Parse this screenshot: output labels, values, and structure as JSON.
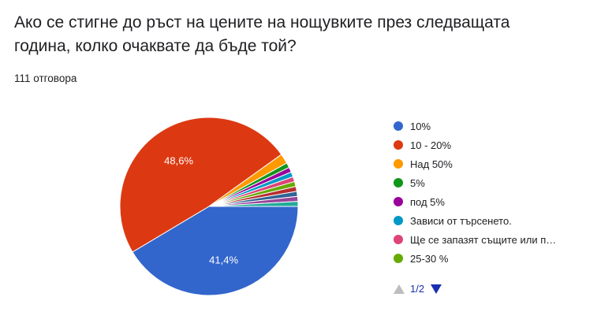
{
  "question": "Ако се стигне до ръст на цените на нощувките през следващата година, колко очаквате да бъде той?",
  "responses": "111 отговора",
  "chart_data": {
    "type": "pie",
    "slices": [
      {
        "label": "10%",
        "value": 41.4,
        "color": "#3366cc",
        "data_label": "41,4%"
      },
      {
        "label": "10 - 20%",
        "value": 48.6,
        "color": "#dc3912",
        "data_label": "48,6%"
      },
      {
        "label": "Над 50%",
        "value": 1.8,
        "color": "#ff9900",
        "data_label": ""
      },
      {
        "label": "5%",
        "value": 0.9,
        "color": "#109618",
        "data_label": ""
      },
      {
        "label": "под 5%",
        "value": 0.9,
        "color": "#990099",
        "data_label": ""
      },
      {
        "label": "Зависи от търсенето.",
        "value": 0.9,
        "color": "#0099c6",
        "data_label": ""
      },
      {
        "label": "Ще се запазят същите или п…",
        "value": 0.9,
        "color": "#dd4477",
        "data_label": ""
      },
      {
        "label": "25-30 %",
        "value": 0.9,
        "color": "#66aa00",
        "data_label": ""
      },
      {
        "label": "",
        "value": 0.9,
        "color": "#b82e2e",
        "data_label": ""
      },
      {
        "label": "",
        "value": 0.9,
        "color": "#316395",
        "data_label": ""
      },
      {
        "label": "",
        "value": 0.9,
        "color": "#994499",
        "data_label": ""
      },
      {
        "label": "",
        "value": 0.9,
        "color": "#22aa99",
        "data_label": ""
      }
    ]
  },
  "legend": {
    "items": [
      {
        "label": "10%",
        "color": "#3366cc"
      },
      {
        "label": "10 - 20%",
        "color": "#dc3912"
      },
      {
        "label": "Над 50%",
        "color": "#ff9900"
      },
      {
        "label": "5%",
        "color": "#109618"
      },
      {
        "label": "под 5%",
        "color": "#990099"
      },
      {
        "label": "Зависи от търсенето.",
        "color": "#0099c6"
      },
      {
        "label": "Ще се запазят същите или п…",
        "color": "#dd4477"
      },
      {
        "label": "25-30 %",
        "color": "#66aa00"
      }
    ],
    "page": "1/2",
    "prev_icon": "triangle-up-icon",
    "next_icon": "triangle-down-icon"
  }
}
